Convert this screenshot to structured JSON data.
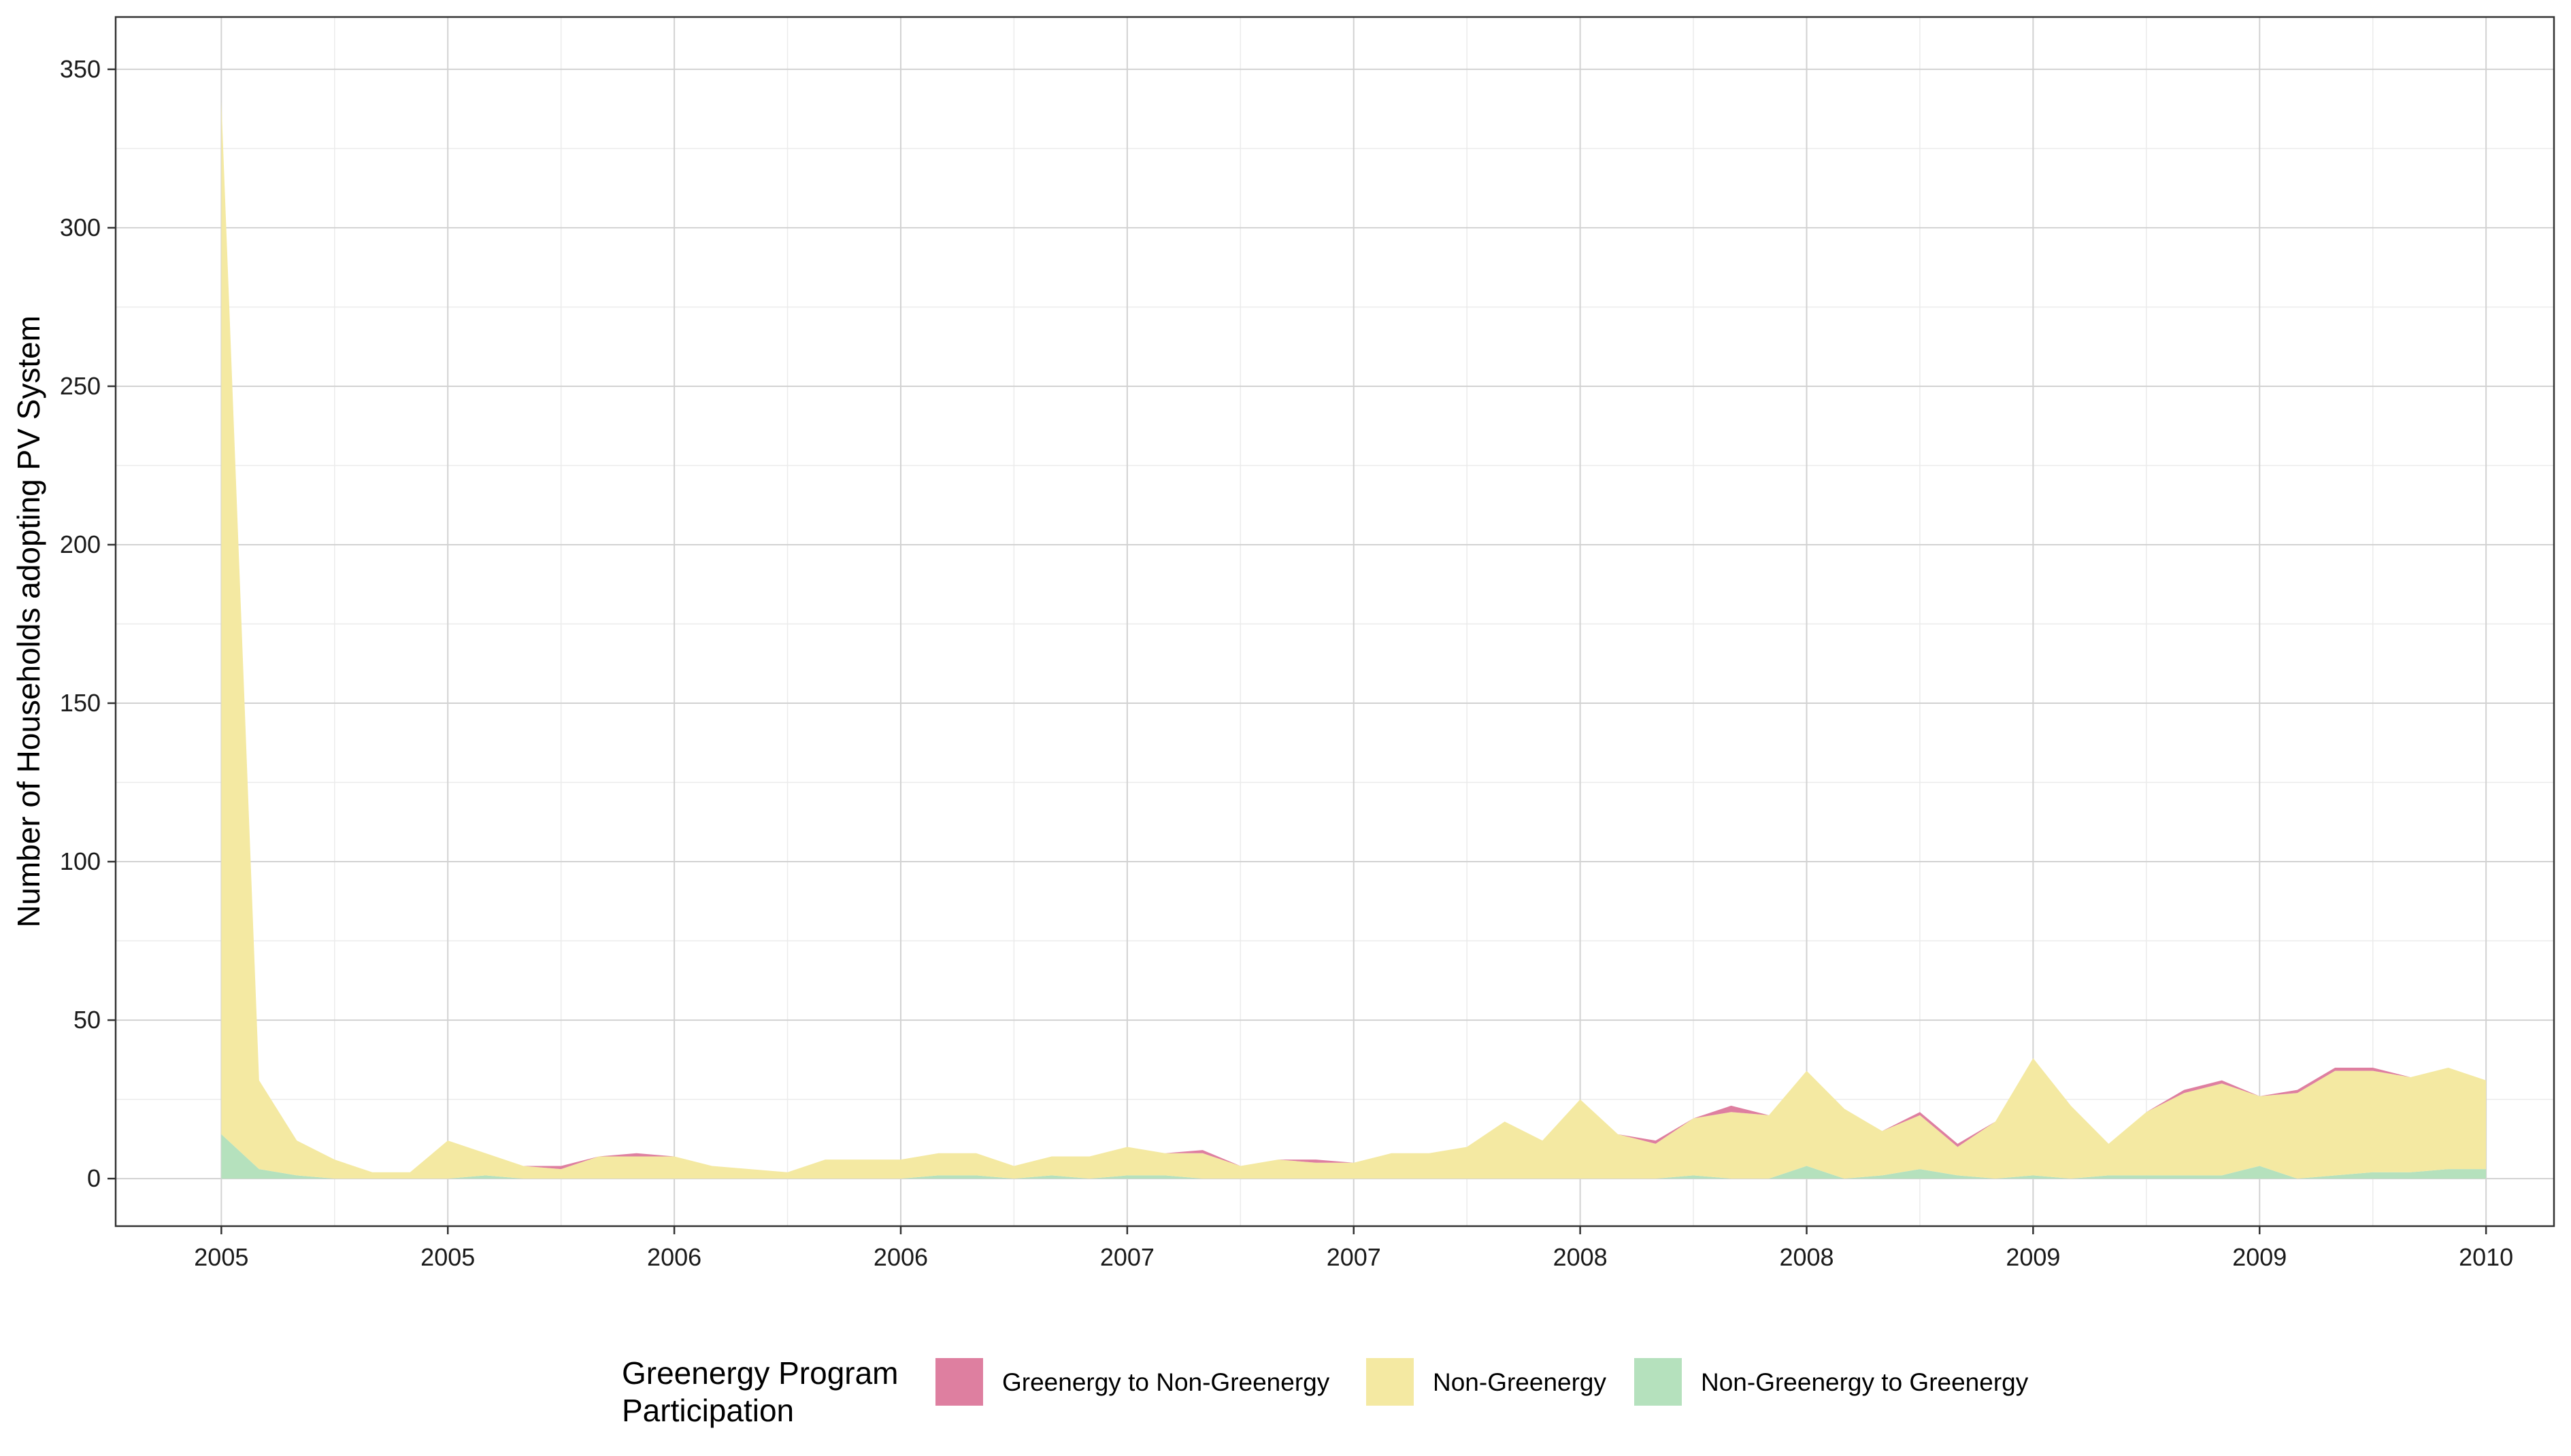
{
  "chart_data": {
    "type": "area",
    "stacked": true,
    "title": "",
    "xlabel": "",
    "ylabel": "Number of Households adopting PV System",
    "ylim": [
      -15,
      350
    ],
    "y_ticks": [
      0,
      50,
      100,
      150,
      200,
      250,
      300,
      350
    ],
    "x_start": "2005-01",
    "x_ticks": [
      {
        "x": 0,
        "label": "2005"
      },
      {
        "x": 6,
        "label": "2005"
      },
      {
        "x": 12,
        "label": "2006"
      },
      {
        "x": 18,
        "label": "2006"
      },
      {
        "x": 24,
        "label": "2007"
      },
      {
        "x": 30,
        "label": "2007"
      },
      {
        "x": 36,
        "label": "2008"
      },
      {
        "x": 42,
        "label": "2008"
      },
      {
        "x": 48,
        "label": "2009"
      },
      {
        "x": 54,
        "label": "2009"
      },
      {
        "x": 60,
        "label": "2010"
      }
    ],
    "xlim": [
      -2.8,
      61.8
    ],
    "grid": true,
    "legend_position": "bottom",
    "legend_title": "Greenergy Program\nParticipation",
    "series": [
      {
        "name": "Non-Greenergy to Greenergy",
        "color": "#b5e1bd",
        "values": [
          14,
          3,
          1,
          0,
          0,
          0,
          0,
          1,
          0,
          0,
          0,
          0,
          0,
          0,
          0,
          0,
          0,
          0,
          0,
          1,
          1,
          0,
          1,
          0,
          1,
          1,
          0,
          0,
          0,
          0,
          0,
          0,
          0,
          0,
          0,
          0,
          0,
          0,
          0,
          1,
          0,
          0,
          4,
          0,
          1,
          3,
          1,
          0,
          1,
          0,
          1,
          1,
          1,
          1,
          4,
          0,
          1,
          2,
          2,
          3,
          3
        ]
      },
      {
        "name": "Non-Greenergy",
        "color": "#f4e9a2",
        "values": [
          326,
          28,
          11,
          6,
          2,
          2,
          12,
          7,
          4,
          3,
          7,
          7,
          7,
          4,
          3,
          2,
          6,
          6,
          6,
          7,
          7,
          4,
          6,
          7,
          9,
          7,
          8,
          4,
          6,
          5,
          5,
          8,
          8,
          10,
          18,
          12,
          25,
          14,
          11,
          18,
          21,
          20,
          30,
          22,
          14,
          17,
          9,
          18,
          37,
          23,
          10,
          20,
          26,
          29,
          22,
          27,
          33,
          32,
          30,
          32,
          28
        ]
      },
      {
        "name": "Greenergy to Non-Greenergy",
        "color": "#de7fa0",
        "values": [
          0,
          0,
          0,
          0,
          0,
          0,
          0,
          0,
          0,
          1,
          0,
          1,
          0,
          0,
          0,
          0,
          0,
          0,
          0,
          0,
          0,
          0,
          0,
          0,
          0,
          0,
          1,
          0,
          0,
          1,
          0,
          0,
          0,
          0,
          0,
          0,
          0,
          0,
          1,
          0,
          2,
          0,
          0,
          0,
          0,
          1,
          1,
          0,
          0,
          0,
          0,
          0,
          1,
          1,
          0,
          1,
          1,
          1,
          0,
          0,
          0
        ]
      }
    ]
  }
}
